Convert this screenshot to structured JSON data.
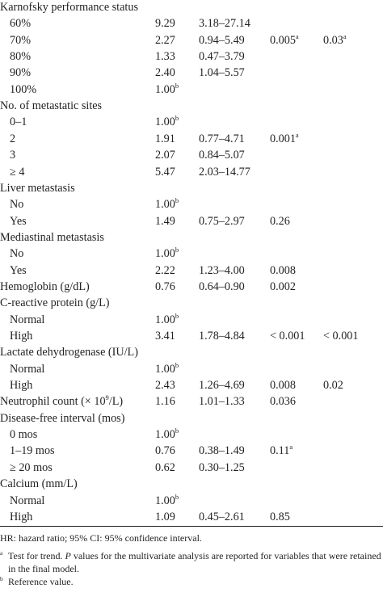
{
  "rows": [
    {
      "type": "group",
      "label": "Karnofsky performance status"
    },
    {
      "type": "item",
      "label": "60%",
      "hr": "9.29",
      "ci": "3.18–27.14"
    },
    {
      "type": "item",
      "label": "70%",
      "hr": "2.27",
      "ci": "0.94–5.49",
      "p1": "0.005",
      "p1_sup": "a",
      "p2": "0.03",
      "p2_sup": "a"
    },
    {
      "type": "item",
      "label": "80%",
      "hr": "1.33",
      "ci": "0.47–3.79"
    },
    {
      "type": "item",
      "label": "90%",
      "hr": "2.40",
      "ci": "1.04–5.57"
    },
    {
      "type": "item",
      "label": "100%",
      "hr": "1.00",
      "hr_sup": "b"
    },
    {
      "type": "group",
      "label": "No. of metastatic sites"
    },
    {
      "type": "item",
      "label": "0–1",
      "hr": "1.00",
      "hr_sup": "b"
    },
    {
      "type": "item",
      "label": "2",
      "hr": "1.91",
      "ci": "0.77–4.71",
      "p1": "0.001",
      "p1_sup": "a"
    },
    {
      "type": "item",
      "label": "3",
      "hr": "2.07",
      "ci": "0.84–5.07"
    },
    {
      "type": "item",
      "label": "≥ 4",
      "hr": "5.47",
      "ci": "2.03–14.77"
    },
    {
      "type": "group",
      "label": "Liver metastasis"
    },
    {
      "type": "item",
      "label": "No",
      "hr": "1.00",
      "hr_sup": "b"
    },
    {
      "type": "item",
      "label": "Yes",
      "hr": "1.49",
      "ci": "0.75–2.97",
      "p1": "0.26"
    },
    {
      "type": "group",
      "label": "Mediastinal metastasis"
    },
    {
      "type": "item",
      "label": "No",
      "hr": "1.00",
      "hr_sup": "b"
    },
    {
      "type": "item",
      "label": "Yes",
      "hr": "2.22",
      "ci": "1.23–4.00",
      "p1": "0.008"
    },
    {
      "type": "group",
      "label": "Hemoglobin (g/dL)",
      "hr": "0.76",
      "ci": "0.64–0.90",
      "p1": "0.002"
    },
    {
      "type": "group",
      "label": "C-reactive protein (g/L)"
    },
    {
      "type": "item",
      "label": "Normal",
      "hr": "1.00",
      "hr_sup": "b"
    },
    {
      "type": "item",
      "label": "High",
      "hr": "3.41",
      "ci": "1.78–4.84",
      "p1": "< 0.001",
      "p2": "< 0.001"
    },
    {
      "type": "group",
      "label": "Lactate dehydrogenase (IU/L)"
    },
    {
      "type": "item",
      "label": "Normal",
      "hr": "1.00",
      "hr_sup": "b"
    },
    {
      "type": "item",
      "label": "High",
      "hr": "2.43",
      "ci": "1.26–4.69",
      "p1": "0.008",
      "p2": "0.02"
    },
    {
      "type": "group",
      "label": "Neutrophil count (× 10",
      "label_sup": "9",
      "label_after": "/L)",
      "hr": "1.16",
      "ci": "1.01–1.33",
      "p1": "0.036"
    },
    {
      "type": "group",
      "label": "Disease-free interval (mos)"
    },
    {
      "type": "item",
      "label": "0 mos",
      "hr": "1.00",
      "hr_sup": "b"
    },
    {
      "type": "item",
      "label": "1–19 mos",
      "hr": "0.76",
      "ci": "0.38–1.49",
      "p1": "0.11",
      "p1_sup": "a"
    },
    {
      "type": "item",
      "label": "≥ 20 mos",
      "hr": "0.62",
      "ci": "0.30–1.25"
    },
    {
      "type": "group",
      "label": "Calcium (mm/L)"
    },
    {
      "type": "item",
      "label": "Normal",
      "hr": "1.00",
      "hr_sup": "b"
    },
    {
      "type": "item",
      "label": "High",
      "hr": "1.09",
      "ci": "0.45–2.61",
      "p1": "0.85"
    }
  ],
  "footnotes": {
    "abbrev": "HR: hazard ratio; 95% CI: 95% confidence interval.",
    "a_mark": "a",
    "a_text_1": "Test for trend. ",
    "a_text_italic": "P",
    "a_text_2": " values for the multivariate analysis are reported for variables that were retained in the final model.",
    "b_mark": "b",
    "b_text": "Reference value."
  }
}
